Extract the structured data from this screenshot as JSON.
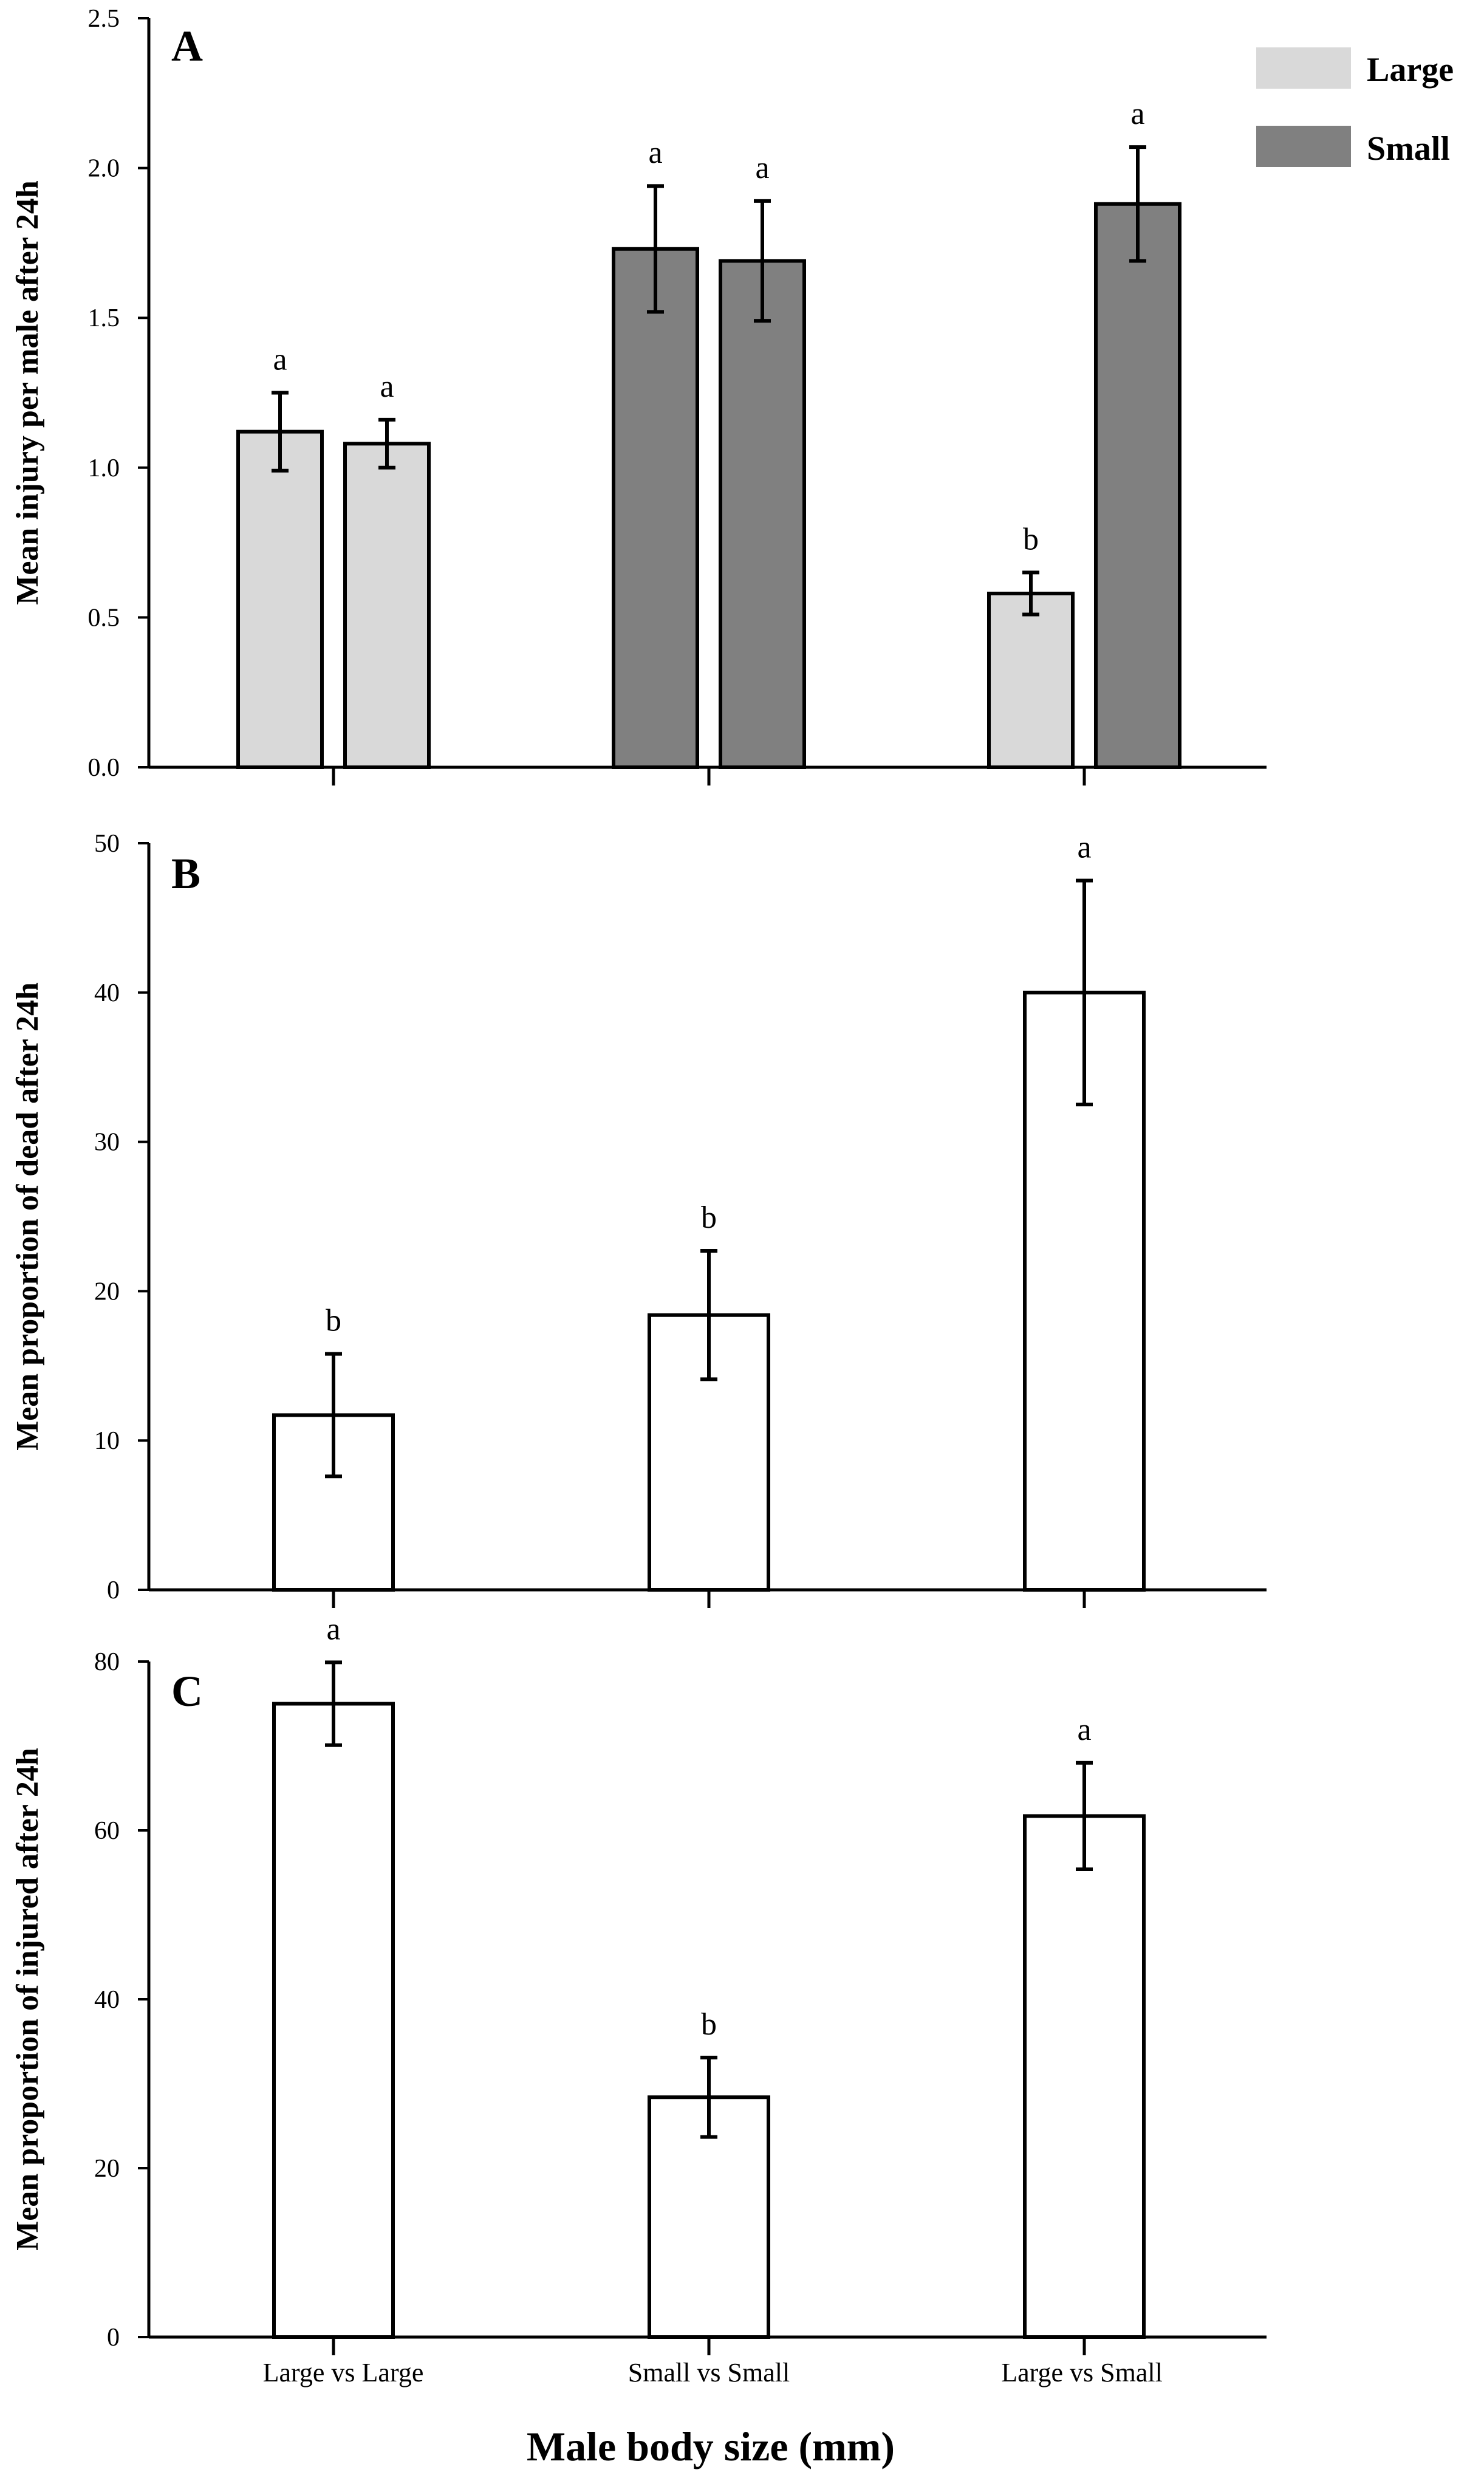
{
  "colors": {
    "large": "#d9d9d9",
    "small": "#808080",
    "single": "#ffffff",
    "stroke": "#000000"
  },
  "legend": {
    "large_label": "Large",
    "small_label": "Small"
  },
  "x_axis_title": "Male body size (mm)",
  "categories": [
    "Large vs Large",
    "Small vs Small",
    "Large vs Small"
  ],
  "chart_data": [
    {
      "panel": "A",
      "type": "bar",
      "ylabel": "Mean injury per male after 24h",
      "ylim": [
        0,
        2.5
      ],
      "yticks": [
        "0.0",
        "0.5",
        "1.0",
        "1.5",
        "2.0",
        "2.5"
      ],
      "bars": [
        {
          "category": "Large vs Large",
          "group": "large",
          "value": 1.12,
          "error": 0.13,
          "sig": "a"
        },
        {
          "category": "Large vs Large",
          "group": "large",
          "value": 1.08,
          "error": 0.08,
          "sig": "a"
        },
        {
          "category": "Small vs Small",
          "group": "small",
          "value": 1.73,
          "error": 0.21,
          "sig": "a"
        },
        {
          "category": "Small vs Small",
          "group": "small",
          "value": 1.69,
          "error": 0.2,
          "sig": "a"
        },
        {
          "category": "Large vs Small",
          "group": "large",
          "value": 0.58,
          "error": 0.07,
          "sig": "b"
        },
        {
          "category": "Large vs Small",
          "group": "small",
          "value": 1.88,
          "error": 0.19,
          "sig": "a"
        }
      ]
    },
    {
      "panel": "B",
      "type": "bar",
      "ylabel": "Mean proportion of dead after 24h",
      "ylim": [
        0,
        50
      ],
      "yticks": [
        "0",
        "10",
        "20",
        "30",
        "40",
        "50"
      ],
      "bars": [
        {
          "category": "Large vs Large",
          "group": "single",
          "value": 11.7,
          "error": 4.1,
          "sig": "b"
        },
        {
          "category": "Small vs Small",
          "group": "single",
          "value": 18.4,
          "error": 4.3,
          "sig": "b"
        },
        {
          "category": "Large vs Small",
          "group": "single",
          "value": 40.0,
          "error": 7.5,
          "sig": "a"
        }
      ]
    },
    {
      "panel": "C",
      "type": "bar",
      "ylabel": "Mean proportion of injured after 24h",
      "ylim": [
        0,
        80
      ],
      "yticks": [
        "0",
        "20",
        "40",
        "60",
        "80"
      ],
      "bars": [
        {
          "category": "Large vs Large",
          "group": "single",
          "value": 75.0,
          "error": 4.9,
          "sig": "a"
        },
        {
          "category": "Small vs Small",
          "group": "single",
          "value": 28.4,
          "error": 4.7,
          "sig": "b"
        },
        {
          "category": "Large vs Small",
          "group": "single",
          "value": 61.7,
          "error": 6.3,
          "sig": "a"
        }
      ]
    }
  ]
}
